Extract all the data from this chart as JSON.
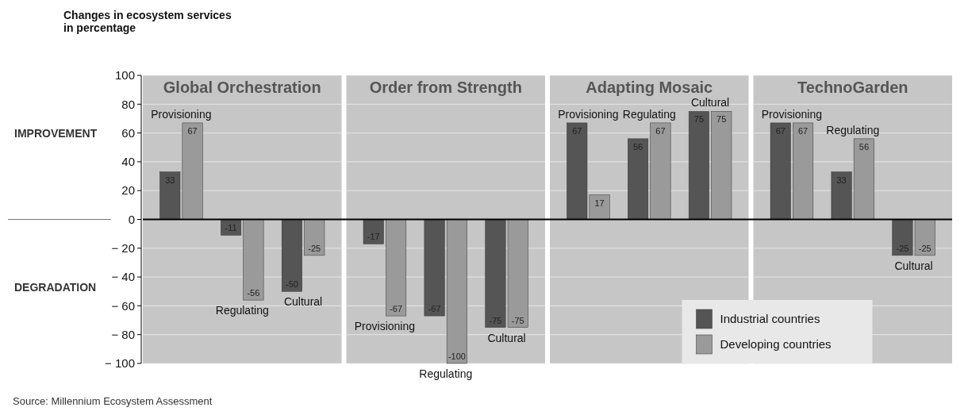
{
  "chart_data": {
    "type": "bar",
    "ylabel": "Changes in ecosystem services\nin percentage",
    "categories": [
      "Provisioning",
      "Regulating",
      "Cultural",
      "Provisioning",
      "Regulating",
      "Cultural",
      "Provisioning",
      "Regulating",
      "Cultural",
      "Provisioning",
      "Regulating",
      "Cultural"
    ],
    "series": [
      {
        "name": "Industrial countries",
        "color": "#555555",
        "values": [
          33,
          -11,
          -50,
          -17,
          -67,
          -75,
          67,
          56,
          75,
          67,
          33,
          -25
        ]
      },
      {
        "name": "Developing countries",
        "color": "#9a9a9a",
        "values": [
          67,
          -56,
          -25,
          -67,
          -100,
          -75,
          17,
          67,
          75,
          67,
          56,
          -25
        ]
      }
    ],
    "ylim": [
      -100,
      100
    ],
    "yticks": [
      {
        "value": -100,
        "label": "− 100"
      },
      {
        "value": -80,
        "label": "− 80"
      },
      {
        "value": -60,
        "label": "− 60"
      },
      {
        "value": -40,
        "label": "− 40"
      },
      {
        "value": -20,
        "label": "− 20"
      },
      0,
      20,
      40,
      60,
      80,
      100
    ],
    "grid": "y",
    "data_labels": true,
    "legend": "bottom right",
    "annotations": [
      "Global Orchestration",
      "Order from Strength",
      "Adapting Mosaic",
      "TechnoGarden",
      "IMPROVEMENT",
      "DEGRADATION",
      "Source: Millennium Ecosystem Assessment"
    ]
  }
}
